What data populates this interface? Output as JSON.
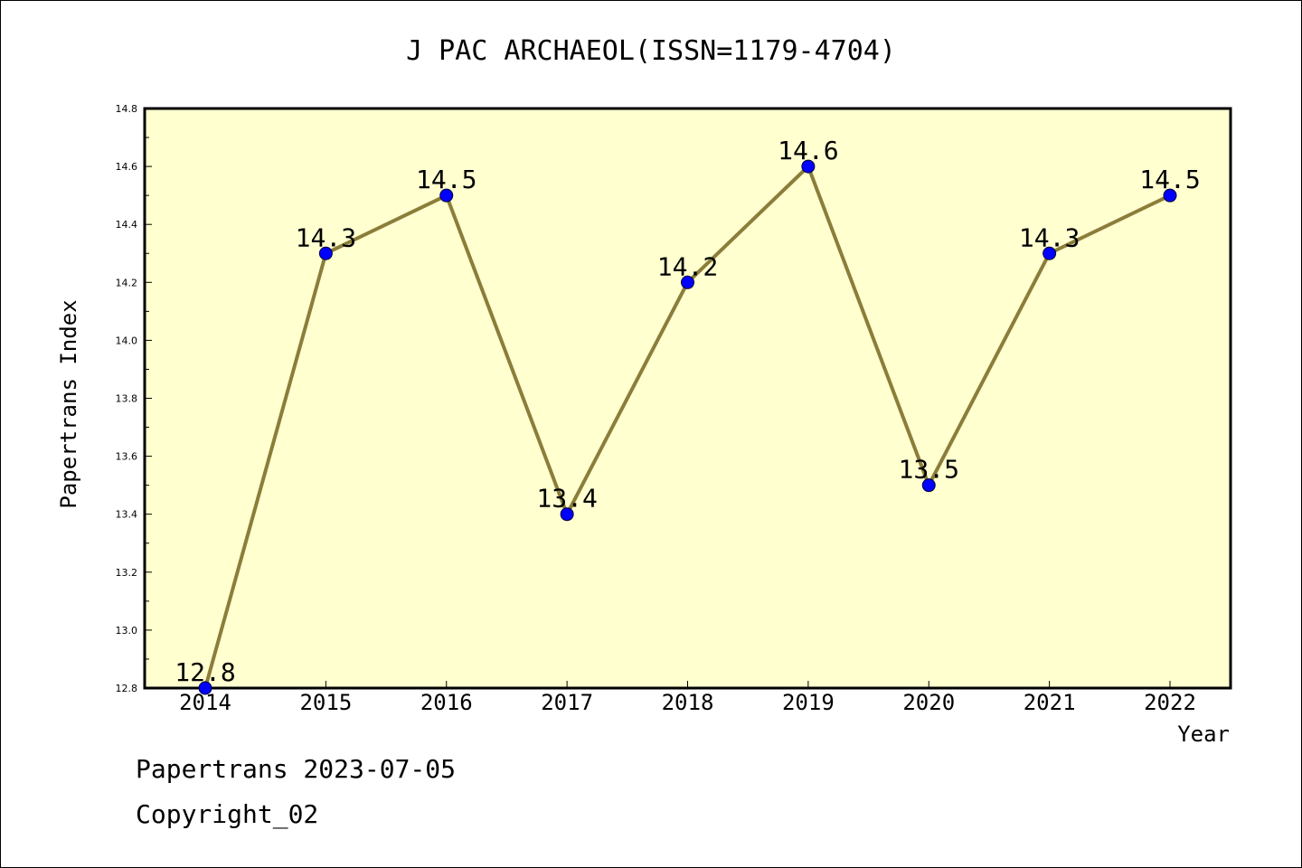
{
  "chart_data": {
    "type": "line",
    "title": "J PAC ARCHAEOL(ISSN=1179-4704)",
    "xlabel": "Year",
    "ylabel": "Papertrans Index",
    "x": [
      "2014",
      "2015",
      "2016",
      "2017",
      "2018",
      "2019",
      "2020",
      "2021",
      "2022"
    ],
    "series": [
      {
        "values": [
          12.8,
          14.3,
          14.5,
          13.4,
          14.2,
          14.6,
          13.5,
          14.3,
          14.5
        ]
      }
    ],
    "data_labels": [
      "12.8",
      "14.3",
      "14.5",
      "13.4",
      "14.2",
      "14.6",
      "13.5",
      "14.3",
      "14.5"
    ],
    "ylim": [
      12.8,
      14.8
    ],
    "yticks": [
      "12.8",
      "13.0",
      "13.2",
      "13.4",
      "13.6",
      "13.8",
      "14.0",
      "14.2",
      "14.4",
      "14.6",
      "14.8"
    ],
    "grid": false,
    "colors": {
      "plot_background": "#ffffd0",
      "line": "#8b7d3a",
      "marker": "#0000ff"
    }
  },
  "footer": {
    "date_text": "Papertrans 2023-07-05",
    "copyright": "Copyright_02"
  }
}
